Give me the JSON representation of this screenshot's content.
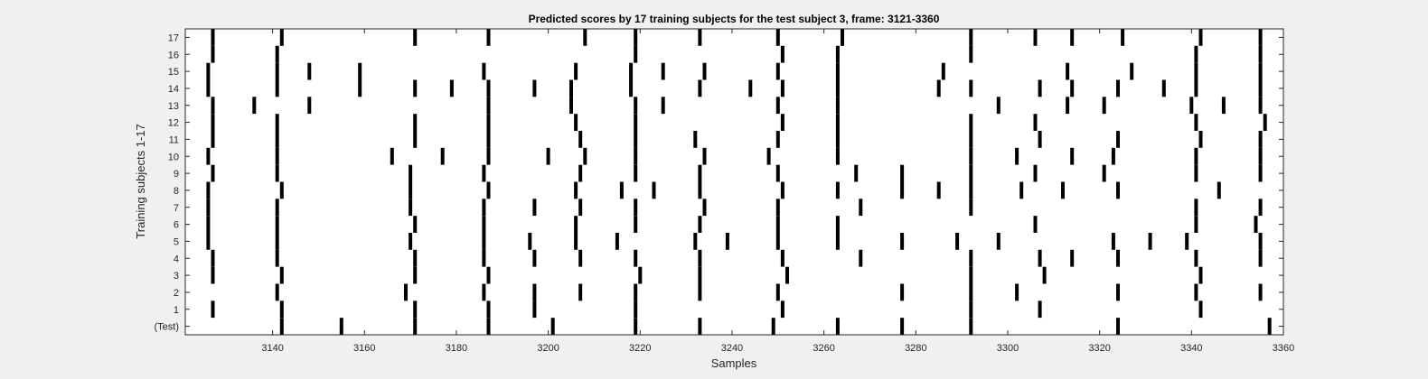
{
  "chart_data": {
    "type": "raster",
    "title": "Predicted scores by 17 training subjects for the test subject 3, frame: 3121-3360",
    "xlabel": "Samples",
    "ylabel": "Training subjects 1-17",
    "xlim": [
      3121,
      3360
    ],
    "xticks": [
      3140,
      3160,
      3180,
      3200,
      3220,
      3240,
      3260,
      3280,
      3300,
      3320,
      3340,
      3360
    ],
    "rows": [
      "(Test)",
      "1",
      "2",
      "3",
      "4",
      "5",
      "6",
      "7",
      "8",
      "9",
      "10",
      "11",
      "12",
      "13",
      "14",
      "15",
      "16",
      "17"
    ],
    "series": [
      {
        "row": "(Test)",
        "x": [
          3142,
          3155,
          3171,
          3187,
          3201,
          3219,
          3233,
          3249,
          3263,
          3277,
          3292,
          3324,
          3357
        ]
      },
      {
        "row": "1",
        "x": [
          3127,
          3142,
          3171,
          3187,
          3197,
          3219,
          3251,
          3292,
          3307,
          3342
        ]
      },
      {
        "row": "2",
        "x": [
          3141,
          3169,
          3186,
          3197,
          3207,
          3219,
          3233,
          3250,
          3277,
          3292,
          3302,
          3324,
          3341,
          3355
        ]
      },
      {
        "row": "3",
        "x": [
          3127,
          3142,
          3171,
          3187,
          3220,
          3233,
          3252,
          3292,
          3308,
          3342
        ]
      },
      {
        "row": "4",
        "x": [
          3127,
          3141,
          3171,
          3186,
          3197,
          3207,
          3219,
          3233,
          3251,
          3268,
          3292,
          3307,
          3314,
          3324,
          3341,
          3355
        ]
      },
      {
        "row": "5",
        "x": [
          3126,
          3141,
          3170,
          3186,
          3196,
          3206,
          3215,
          3232,
          3239,
          3250,
          3263,
          3277,
          3289,
          3298,
          3323,
          3331,
          3339,
          3355
        ]
      },
      {
        "row": "6",
        "x": [
          3126,
          3141,
          3171,
          3186,
          3206,
          3219,
          3233,
          3250,
          3263,
          3306,
          3341,
          3354
        ]
      },
      {
        "row": "7",
        "x": [
          3126,
          3141,
          3170,
          3186,
          3197,
          3207,
          3219,
          3234,
          3250,
          3268,
          3292,
          3341,
          3355
        ]
      },
      {
        "row": "8",
        "x": [
          3126,
          3142,
          3170,
          3187,
          3206,
          3216,
          3223,
          3233,
          3251,
          3263,
          3277,
          3285,
          3292,
          3303,
          3312,
          3324,
          3346
        ]
      },
      {
        "row": "9",
        "x": [
          3127,
          3141,
          3170,
          3186,
          3207,
          3219,
          3233,
          3250,
          3267,
          3277,
          3292,
          3306,
          3321,
          3341,
          3355
        ]
      },
      {
        "row": "10",
        "x": [
          3126,
          3141,
          3166,
          3177,
          3187,
          3200,
          3208,
          3219,
          3234,
          3248,
          3263,
          3292,
          3302,
          3314,
          3323,
          3341,
          3355
        ]
      },
      {
        "row": "11",
        "x": [
          3127,
          3141,
          3171,
          3187,
          3207,
          3219,
          3232,
          3250,
          3263,
          3292,
          3307,
          3324,
          3342,
          3355
        ]
      },
      {
        "row": "12",
        "x": [
          3127,
          3141,
          3171,
          3187,
          3206,
          3219,
          3251,
          3263,
          3292,
          3306,
          3341,
          3356
        ]
      },
      {
        "row": "13",
        "x": [
          3127,
          3136,
          3148,
          3187,
          3205,
          3219,
          3225,
          3250,
          3263,
          3298,
          3313,
          3321,
          3340,
          3347,
          3355
        ]
      },
      {
        "row": "14",
        "x": [
          3126,
          3141,
          3159,
          3171,
          3179,
          3187,
          3197,
          3205,
          3218,
          3233,
          3244,
          3251,
          3263,
          3285,
          3292,
          3307,
          3314,
          3324,
          3334,
          3341,
          3355
        ]
      },
      {
        "row": "15",
        "x": [
          3126,
          3141,
          3148,
          3159,
          3186,
          3206,
          3218,
          3225,
          3234,
          3250,
          3263,
          3286,
          3313,
          3327,
          3341,
          3355
        ]
      },
      {
        "row": "16",
        "x": [
          3127,
          3141,
          3219,
          3251,
          3263,
          3292,
          3341,
          3355
        ]
      },
      {
        "row": "17",
        "x": [
          3127,
          3142,
          3171,
          3187,
          3208,
          3219,
          3233,
          3250,
          3264,
          3292,
          3306,
          3314,
          3325,
          3342,
          3355
        ]
      }
    ],
    "grid": false,
    "colors": {
      "figure_background": "#f0f0f0",
      "plot_background": "#ffffff",
      "mark": "#000000",
      "axis": "#262626"
    }
  }
}
